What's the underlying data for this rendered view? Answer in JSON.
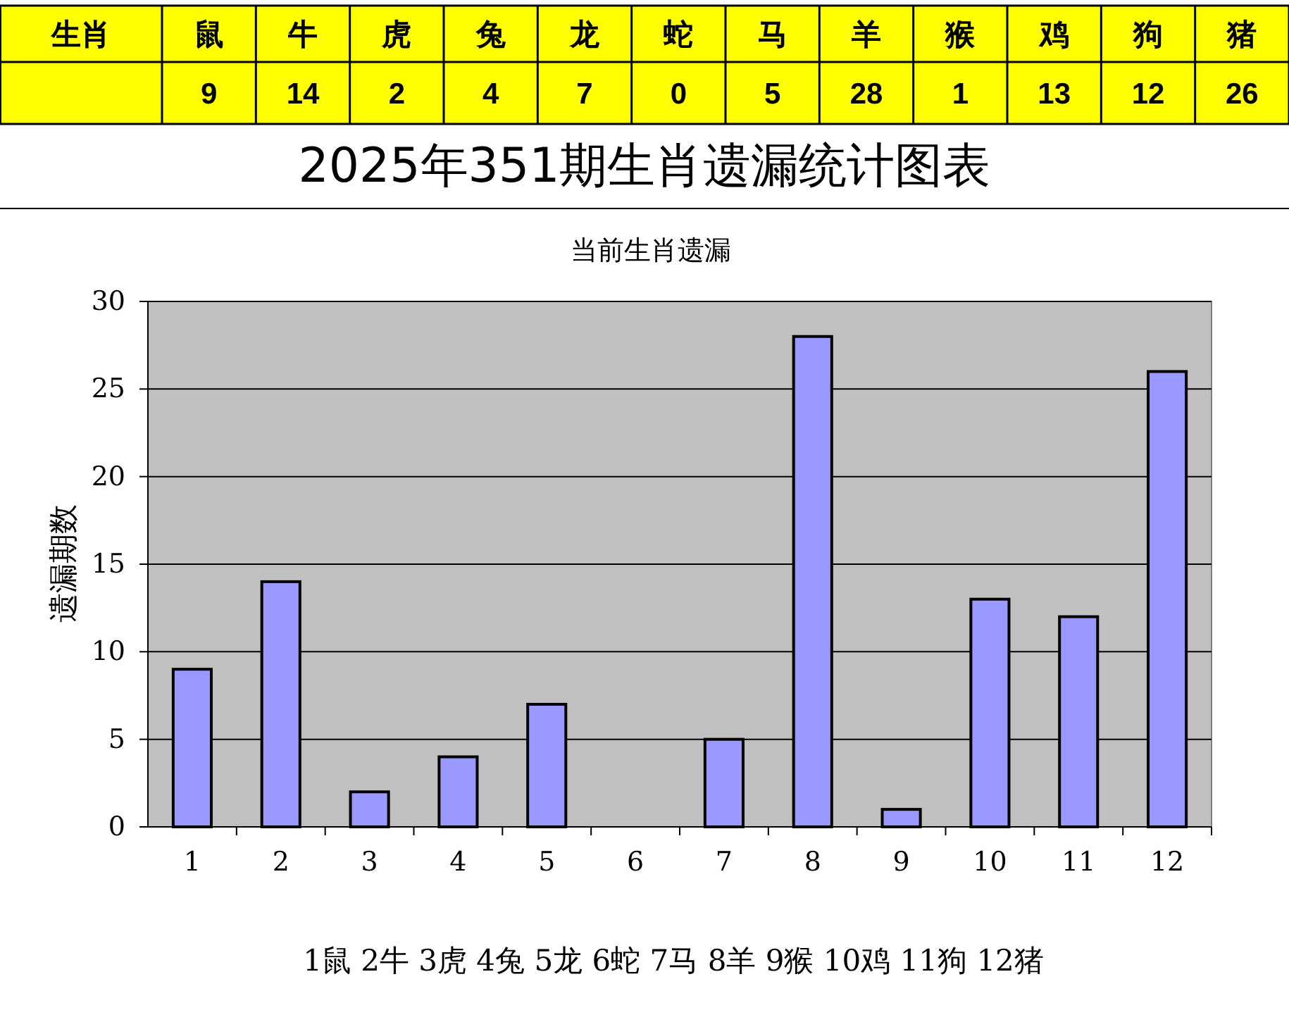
{
  "chart_data": [
    {
      "type": "other",
      "title": "生肖",
      "categories": [
        "鼠",
        "牛",
        "虎",
        "兔",
        "龙",
        "蛇",
        "马",
        "羊",
        "猴",
        "鸡",
        "狗",
        "猪"
      ],
      "values": [
        9,
        14,
        2,
        4,
        7,
        0,
        5,
        28,
        1,
        13,
        12,
        26
      ],
      "color": "#ffff00",
      "data_labels": true
    },
    {
      "type": "bar",
      "title": "2025年351期生肖遗漏统计图表",
      "subtitle": "当前生肖遗漏",
      "ylabel": "遗漏期数",
      "categories": [
        "1",
        "2",
        "3",
        "4",
        "5",
        "6",
        "7",
        "8",
        "9",
        "10",
        "11",
        "12"
      ],
      "values": [
        9,
        14,
        2,
        4,
        7,
        0,
        5,
        28,
        1,
        13,
        12,
        26
      ],
      "color": "#9999ff",
      "ylim": [
        0,
        30
      ],
      "yticks": [
        0,
        5,
        10,
        15,
        20,
        25,
        30
      ],
      "grid": "y",
      "annotations": [
        "1鼠  2牛  3虎  4兔  5龙  6蛇  7马  8羊  9猴  10鸡  11狗  12猪"
      ]
    }
  ]
}
